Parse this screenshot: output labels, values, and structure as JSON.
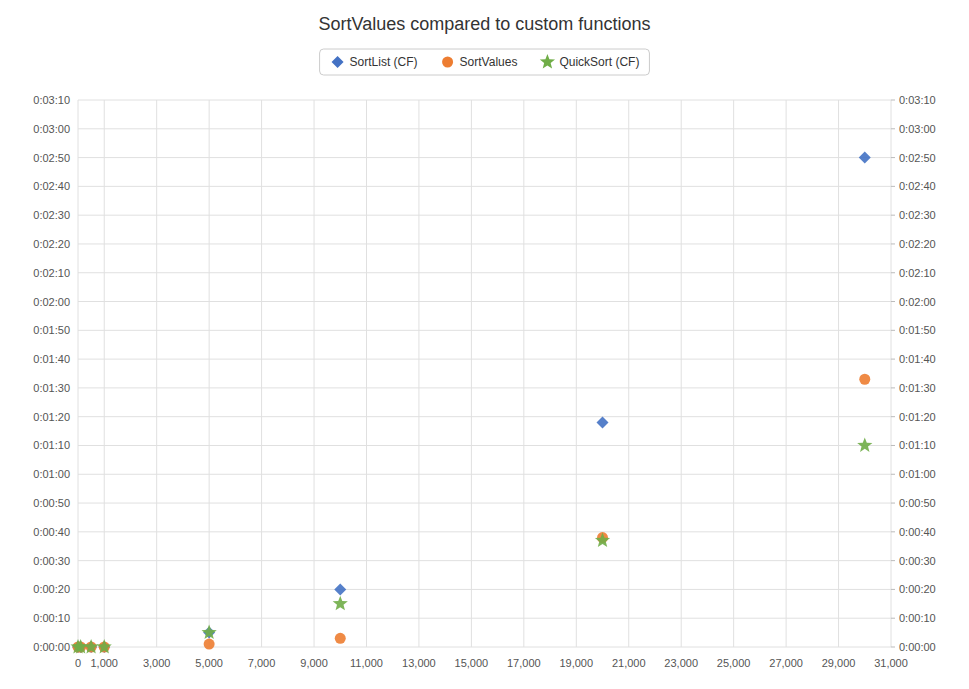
{
  "chart_data": {
    "type": "scatter",
    "title": "SortValues compared to custom functions",
    "x": [
      0,
      100,
      500,
      1000,
      5000,
      10000,
      20000,
      30000
    ],
    "series": [
      {
        "name": "SortList (CF)",
        "color": "#4472c4",
        "marker": "diamond",
        "values": [
          0.0,
          0.0,
          0.0,
          0.0,
          5.0,
          20.0,
          78.0,
          170.0
        ]
      },
      {
        "name": "SortValues",
        "color": "#ed7d31",
        "marker": "circle",
        "values": [
          0.0,
          0.0,
          0.0,
          0.0,
          1.0,
          3.0,
          38.0,
          93.0
        ]
      },
      {
        "name": "QuickSort (CF)",
        "color": "#70ad47",
        "marker": "star",
        "values": [
          0.0,
          0.0,
          0.0,
          0.0,
          5.0,
          15.0,
          37.0,
          70.0
        ]
      }
    ],
    "xlim": [
      0,
      31000
    ],
    "xticks": [
      0,
      {
        "value": 1000,
        "label": "1,000"
      },
      {
        "value": 3000,
        "label": "3,000"
      },
      {
        "value": 5000,
        "label": "5,000"
      },
      {
        "value": 7000,
        "label": "7,000"
      },
      {
        "value": 9000,
        "label": "9,000"
      },
      {
        "value": 11000,
        "label": "11,000"
      },
      {
        "value": 13000,
        "label": "13,000"
      },
      {
        "value": 15000,
        "label": "15,000"
      },
      {
        "value": 17000,
        "label": "17,000"
      },
      {
        "value": 19000,
        "label": "19,000"
      },
      {
        "value": 21000,
        "label": "21,000"
      },
      {
        "value": 23000,
        "label": "23,000"
      },
      {
        "value": 25000,
        "label": "25,000"
      },
      {
        "value": 27000,
        "label": "27,000"
      },
      {
        "value": 29000,
        "label": "29,000"
      },
      {
        "value": 31000,
        "label": "31,000"
      }
    ],
    "ylim": [
      0,
      190
    ],
    "yticks": [
      {
        "value": 0,
        "label": "0:00:00"
      },
      {
        "value": 10,
        "label": "0:00:10"
      },
      {
        "value": 20,
        "label": "0:00:20"
      },
      {
        "value": 30,
        "label": "0:00:30"
      },
      {
        "value": 40,
        "label": "0:00:40"
      },
      {
        "value": 50,
        "label": "0:00:50"
      },
      {
        "value": 60,
        "label": "0:01:00"
      },
      {
        "value": 70,
        "label": "0:01:10"
      },
      {
        "value": 80,
        "label": "0:01:20"
      },
      {
        "value": 90,
        "label": "0:01:30"
      },
      {
        "value": 100,
        "label": "0:01:40"
      },
      {
        "value": 110,
        "label": "0:01:50"
      },
      {
        "value": 120,
        "label": "0:02:00"
      },
      {
        "value": 130,
        "label": "0:02:10"
      },
      {
        "value": 140,
        "label": "0:02:20"
      },
      {
        "value": 150,
        "label": "0:02:30"
      },
      {
        "value": 160,
        "label": "0:02:40"
      },
      {
        "value": 170,
        "label": "0:02:50"
      },
      {
        "value": 180,
        "label": "0:03:00"
      },
      {
        "value": 190,
        "label": "0:03:10"
      }
    ],
    "y2lim": [
      0,
      190
    ],
    "y2ticks": [
      {
        "value": 0,
        "label": "0:00:00"
      },
      {
        "value": 10,
        "label": "0:00:10"
      },
      {
        "value": 20,
        "label": "0:00:20"
      },
      {
        "value": 30,
        "label": "0:00:30"
      },
      {
        "value": 40,
        "label": "0:00:40"
      },
      {
        "value": 50,
        "label": "0:00:50"
      },
      {
        "value": 60,
        "label": "0:01:00"
      },
      {
        "value": 70,
        "label": "0:01:10"
      },
      {
        "value": 80,
        "label": "0:01:20"
      },
      {
        "value": 90,
        "label": "0:01:30"
      },
      {
        "value": 100,
        "label": "0:01:40"
      },
      {
        "value": 110,
        "label": "0:01:50"
      },
      {
        "value": 120,
        "label": "0:02:00"
      },
      {
        "value": 130,
        "label": "0:02:10"
      },
      {
        "value": 140,
        "label": "0:02:20"
      },
      {
        "value": 150,
        "label": "0:02:30"
      },
      {
        "value": 160,
        "label": "0:02:40"
      },
      {
        "value": 170,
        "label": "0:02:50"
      },
      {
        "value": 180,
        "label": "0:03:00"
      },
      {
        "value": 190,
        "label": "0:03:10"
      }
    ],
    "grid": true,
    "legend": "top"
  }
}
